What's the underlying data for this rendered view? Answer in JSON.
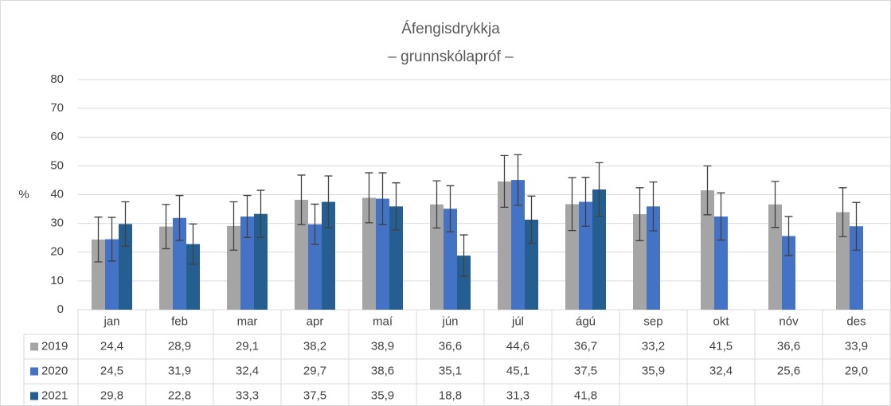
{
  "chart_data": {
    "type": "bar",
    "title": "Áfengisdrykkja",
    "subtitle": "– grunnskólapróf –",
    "y_label": "%",
    "categories": [
      "jan",
      "feb",
      "mar",
      "apr",
      "maí",
      "jún",
      "júl",
      "ágú",
      "sep",
      "okt",
      "nóv",
      "des"
    ],
    "series": [
      {
        "name": "2019",
        "color": "#a5a5a5",
        "values": [
          24.4,
          28.9,
          29.1,
          38.2,
          38.9,
          36.6,
          44.6,
          36.7,
          33.2,
          41.5,
          36.6,
          33.9
        ],
        "value_labels": [
          "24,4",
          "28,9",
          "29,1",
          "38,2",
          "38,9",
          "36,6",
          "44,6",
          "36,7",
          "33,2",
          "41,5",
          "36,6",
          "33,9"
        ],
        "errors": [
          7.8,
          7.7,
          8.4,
          8.6,
          8.7,
          8.2,
          9.0,
          9.2,
          9.2,
          8.5,
          8.0,
          8.5
        ]
      },
      {
        "name": "2020",
        "color": "#4472c4",
        "values": [
          24.5,
          31.9,
          32.4,
          29.7,
          38.6,
          35.1,
          45.1,
          37.5,
          35.9,
          32.4,
          25.6,
          29.0
        ],
        "value_labels": [
          "24,5",
          "31,9",
          "32,4",
          "29,7",
          "38,6",
          "35,1",
          "45,1",
          "37,5",
          "35,9",
          "32,4",
          "25,6",
          "29,0"
        ],
        "errors": [
          7.6,
          7.8,
          7.3,
          7.0,
          9.0,
          8.0,
          8.8,
          8.5,
          8.5,
          8.2,
          6.8,
          8.3
        ]
      },
      {
        "name": "2021",
        "color": "#255e91",
        "values": [
          29.8,
          22.8,
          33.3,
          37.5,
          35.9,
          18.8,
          31.3,
          41.8,
          null,
          null,
          null,
          null
        ],
        "value_labels": [
          "29,8",
          "22,8",
          "33,3",
          "37,5",
          "35,9",
          "18,8",
          "31,3",
          "41,8",
          null,
          null,
          null,
          null
        ],
        "errors": [
          7.7,
          7.0,
          8.2,
          9.0,
          8.2,
          7.2,
          8.2,
          9.3,
          null,
          null,
          null,
          null
        ]
      }
    ],
    "ylim": [
      0,
      80
    ],
    "yticks": [
      0,
      10,
      20,
      30,
      40,
      50,
      60,
      70,
      80
    ],
    "grid": true,
    "error_color": "#404040"
  }
}
